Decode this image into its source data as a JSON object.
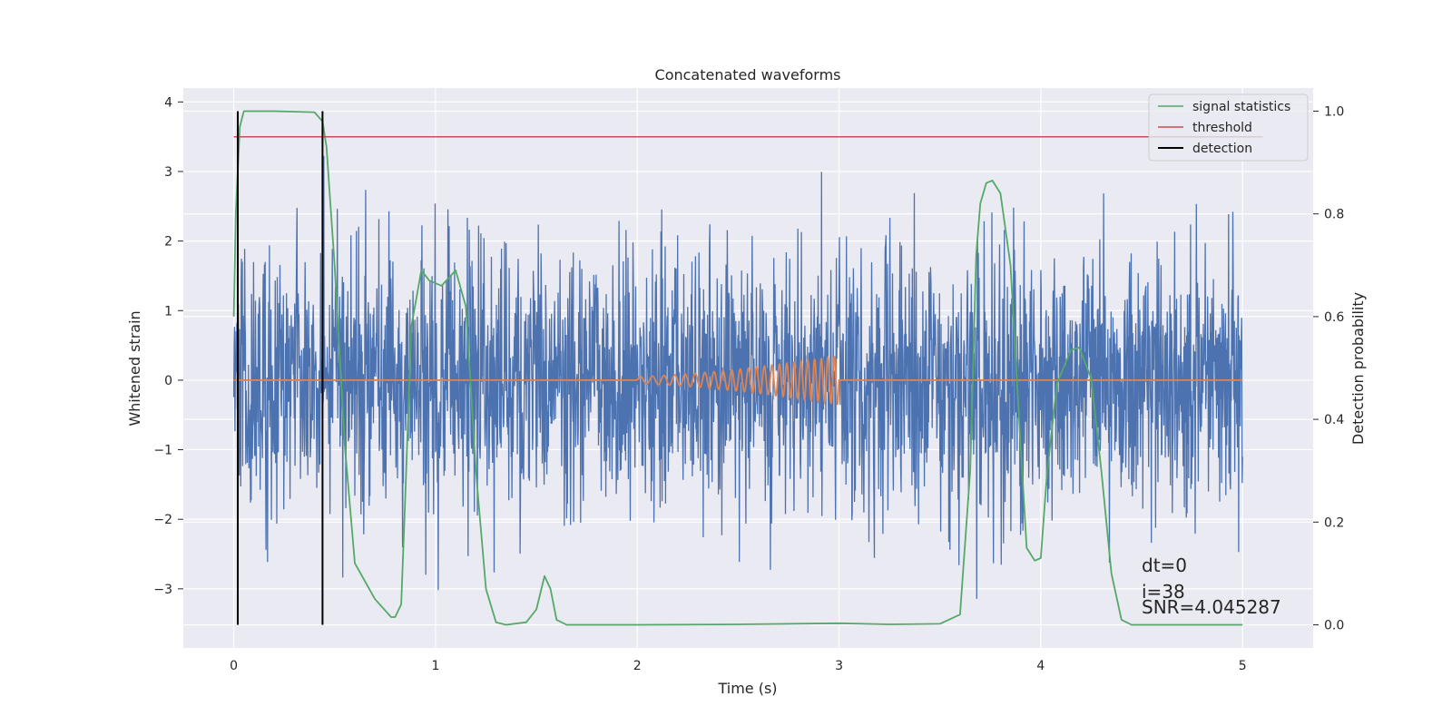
{
  "chart_data": {
    "type": "line",
    "title": "Concatenated waveforms",
    "xlabel": "Time (s)",
    "ylabel": "Whitened strain",
    "y2label": "Detection probability",
    "xlim": [
      -0.25,
      5.35
    ],
    "ylim": [
      -3.85,
      4.2
    ],
    "y2lim": [
      -0.045,
      1.045
    ],
    "xticks": [
      0,
      1,
      2,
      3,
      4,
      5
    ],
    "xtick_labels": [
      "0",
      "1",
      "2",
      "3",
      "4",
      "5"
    ],
    "yticks": [
      4,
      3,
      2,
      1,
      0,
      -1,
      -2,
      -3
    ],
    "ytick_labels": [
      "4",
      "3",
      "2",
      "1",
      "0",
      "−1",
      "−2",
      "−3"
    ],
    "y2ticks": [
      1.0,
      0.8,
      0.6,
      0.4,
      0.2,
      0.0
    ],
    "y2tick_labels": [
      "1.0",
      "0.8",
      "0.6",
      "0.4",
      "0.2",
      "0.0"
    ],
    "grid": true,
    "legend_position": "top-right",
    "colors": {
      "background": "#eaeaf2",
      "grid": "#ffffff",
      "noise": "#4c72b0",
      "template": "#dd8452",
      "signal_statistics": "#55a868",
      "threshold": "#c44e52",
      "detection": "#000000"
    },
    "series": [
      {
        "name": "",
        "axis": "left",
        "kind": "whitened strain noise",
        "x_range": [
          0,
          5
        ],
        "typical_range": [
          -1.6,
          1.6
        ],
        "min": -3.5,
        "max": 3.35
      },
      {
        "name": "",
        "axis": "left",
        "kind": "injected chirp",
        "x_range": [
          2.0,
          3.0
        ],
        "max_amplitude": 0.35
      },
      {
        "name": "signal statistics",
        "axis": "right",
        "x": [
          0,
          0.01,
          0.03,
          0.05,
          0.1,
          0.2,
          0.4,
          0.44,
          0.46,
          0.5,
          0.55,
          0.6,
          0.7,
          0.78,
          0.8,
          0.83,
          0.85,
          0.88,
          0.93,
          0.97,
          1.03,
          1.1,
          1.15,
          1.2,
          1.25,
          1.3,
          1.35,
          1.45,
          1.5,
          1.54,
          1.57,
          1.6,
          1.65,
          2.0,
          2.5,
          3.0,
          3.25,
          3.5,
          3.6,
          3.65,
          3.68,
          3.7,
          3.73,
          3.76,
          3.8,
          3.85,
          3.9,
          3.93,
          3.97,
          4.0,
          4.03,
          4.08,
          4.15,
          4.19,
          4.25,
          4.3,
          4.35,
          4.4,
          4.45,
          5.0
        ],
        "y": [
          0.6,
          0.8,
          0.97,
          1.0,
          1.0,
          1.0,
          0.998,
          0.98,
          0.93,
          0.7,
          0.35,
          0.12,
          0.05,
          0.015,
          0.015,
          0.04,
          0.25,
          0.58,
          0.69,
          0.67,
          0.66,
          0.69,
          0.62,
          0.3,
          0.07,
          0.005,
          0.0,
          0.005,
          0.03,
          0.095,
          0.07,
          0.01,
          0.0,
          0.0,
          0.001,
          0.003,
          0.001,
          0.002,
          0.02,
          0.3,
          0.72,
          0.82,
          0.86,
          0.865,
          0.84,
          0.7,
          0.35,
          0.15,
          0.125,
          0.13,
          0.29,
          0.47,
          0.535,
          0.54,
          0.48,
          0.3,
          0.1,
          0.01,
          0.0,
          0.0
        ]
      },
      {
        "name": "threshold",
        "axis": "right",
        "x": [
          0,
          5.1
        ],
        "y": [
          0.95,
          0.95
        ]
      },
      {
        "name": "detection",
        "axis": "right",
        "kind": "vertical markers",
        "x": [
          0.02,
          0.44
        ],
        "y_range": [
          0.0,
          1.0
        ]
      }
    ],
    "legend": [
      {
        "label": "signal statistics",
        "color": "#55a868"
      },
      {
        "label": "threshold",
        "color": "#c44e52"
      },
      {
        "label": "detection",
        "color": "#000000"
      }
    ],
    "annotations": [
      "dt=0",
      "i=38",
      "SNR=4.045287"
    ]
  }
}
